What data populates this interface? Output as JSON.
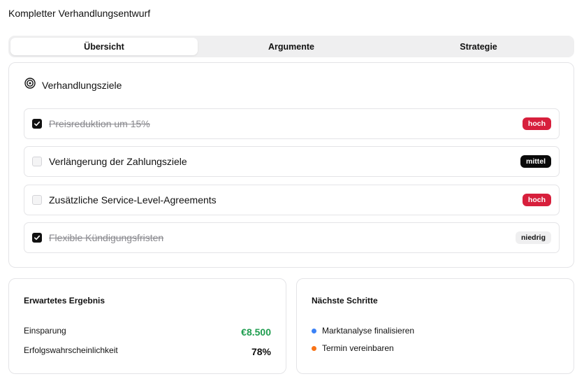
{
  "title": "Kompletter Verhandlungsentwurf",
  "tabs": [
    {
      "label": "Übersicht",
      "active": true
    },
    {
      "label": "Argumente",
      "active": false
    },
    {
      "label": "Strategie",
      "active": false
    }
  ],
  "goals": {
    "heading": "Verhandlungsziele",
    "icon": "target-icon",
    "items": [
      {
        "label": "Preisreduktion um 15%",
        "checked": true,
        "priority": "hoch"
      },
      {
        "label": "Verlängerung der Zahlungsziele",
        "checked": false,
        "priority": "mittel"
      },
      {
        "label": "Zusätzliche Service-Level-Agreements",
        "checked": false,
        "priority": "hoch"
      },
      {
        "label": "Flexible Kündigungsfristen",
        "checked": true,
        "priority": "niedrig"
      }
    ]
  },
  "result": {
    "heading": "Erwartetes Ergebnis",
    "savings_label": "Einsparung",
    "savings_value": "€8.500",
    "probability_label": "Erfolgswahrscheinlichkeit",
    "probability_value": "78%"
  },
  "next_steps": {
    "heading": "Nächste Schritte",
    "items": [
      {
        "label": "Marktanalyse finalisieren",
        "color": "#3b82f6"
      },
      {
        "label": "Termin vereinbaren",
        "color": "#f97316"
      }
    ]
  },
  "colors": {
    "priority_high": "#d71f3c",
    "priority_medium": "#0a0a0a",
    "priority_low": "#efeff0",
    "savings": "#1f9d4f"
  }
}
